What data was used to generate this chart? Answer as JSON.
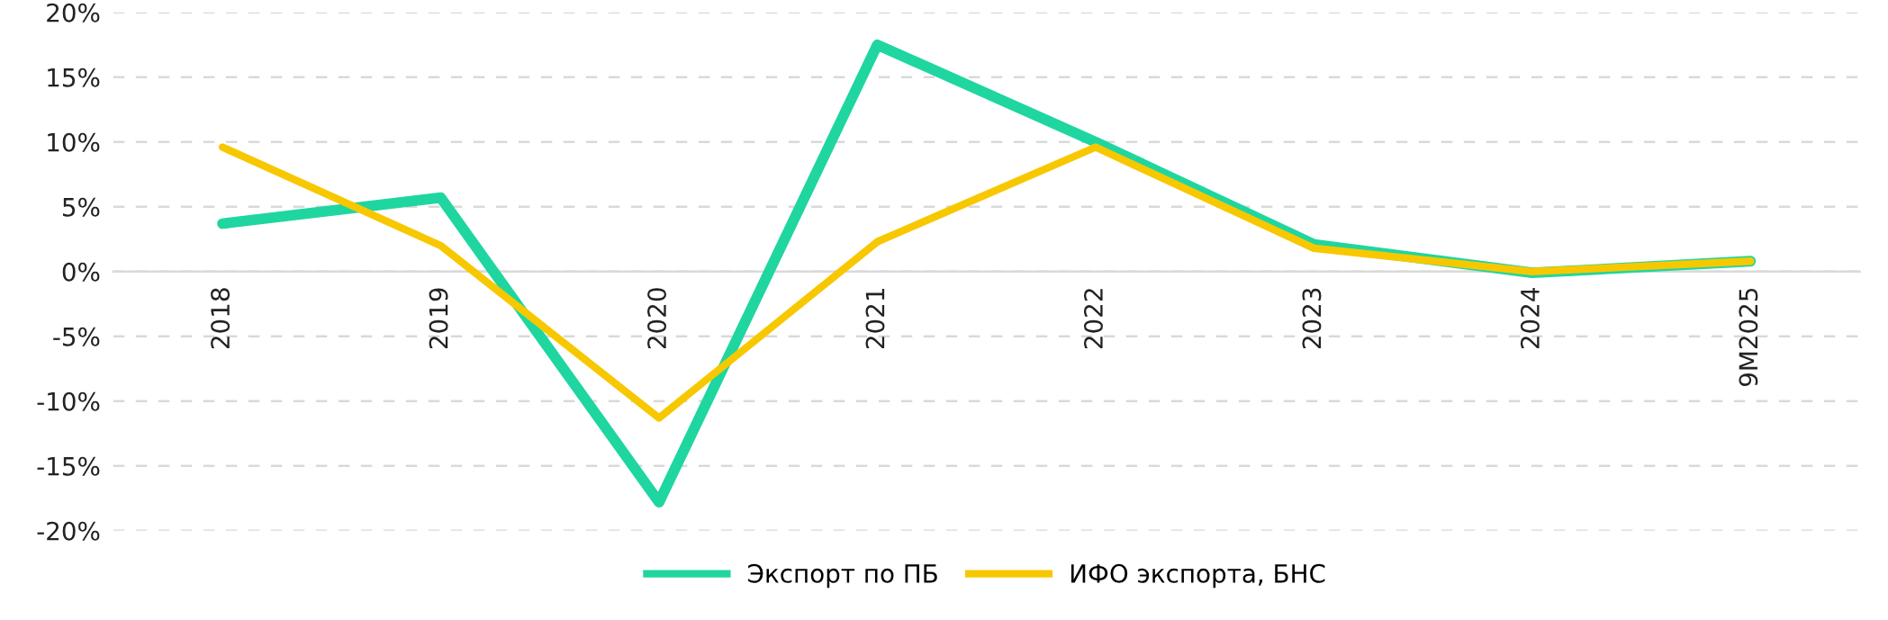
{
  "chart_data": {
    "type": "line",
    "categories": [
      "2018",
      "2019",
      "2020",
      "2021",
      "2022",
      "2023",
      "2024",
      "9M2025"
    ],
    "series": [
      {
        "name": "Экспорт по ПБ",
        "color": "#1fd6a0",
        "values": [
          3.7,
          5.7,
          -17.8,
          17.5,
          10.0,
          2.1,
          -0.1,
          0.8
        ]
      },
      {
        "name": "ИФО экспорта, БНС",
        "color": "#f7c800",
        "values": [
          9.6,
          2.0,
          -11.3,
          2.3,
          9.6,
          1.8,
          0.0,
          0.8
        ]
      }
    ],
    "ylim": [
      -20,
      20
    ],
    "yticks": [
      {
        "value": -20,
        "label": "-20%"
      },
      {
        "value": -15,
        "label": "-15%"
      },
      {
        "value": -10,
        "label": "-10%"
      },
      {
        "value": -5,
        "label": "-5%"
      },
      {
        "value": 0,
        "label": "0%"
      },
      {
        "value": 5,
        "label": "5%"
      },
      {
        "value": 10,
        "label": "10%"
      },
      {
        "value": 15,
        "label": "15%"
      },
      {
        "value": 20,
        "label": "20%"
      }
    ],
    "grid": "y",
    "legend": "bottom",
    "marker": "none",
    "line_style": "solid"
  }
}
